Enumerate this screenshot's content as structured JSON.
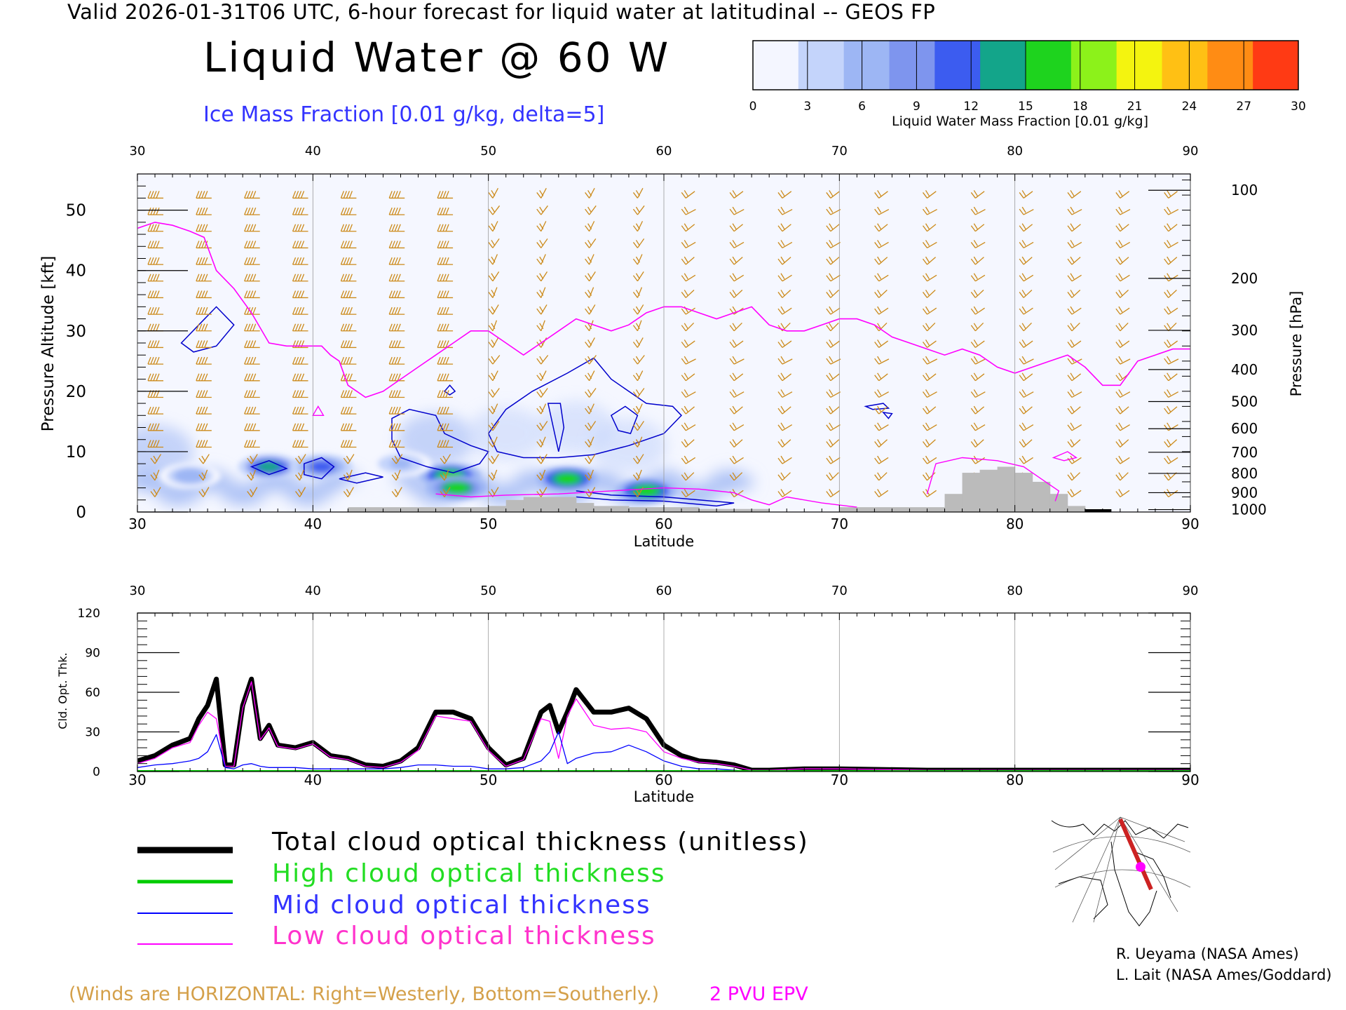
{
  "header": {
    "line": "Valid 2026-01-31T06 UTC, 6-hour forecast for liquid water at latitudinal -- GEOS FP",
    "main_title": "Liquid Water @ 60 W",
    "ice_label": "Ice Mass Fraction [0.01 g/kg, delta=5]"
  },
  "colorbar": {
    "ticks": [
      "0",
      "3",
      "6",
      "9",
      "12",
      "15",
      "18",
      "21",
      "24",
      "27",
      "30"
    ],
    "title": "Liquid Water Mass Fraction [0.01 g/kg]",
    "colors": [
      "#f4f6ff",
      "#c4d4fb",
      "#9db6f4",
      "#7e95ee",
      "#3c5cf0",
      "#13a58a",
      "#1ed31e",
      "#8cf21a",
      "#f4f40f",
      "#ffc014",
      "#ff8c14",
      "#ff3a14"
    ]
  },
  "chart_data": [
    {
      "type": "heatmap",
      "title": "Liquid Water @ 60 W",
      "xlabel": "Latitude",
      "ylabel": "Pressure Altitude [kft]",
      "y2label": "Pressure [hPa]",
      "xlim": [
        30,
        90
      ],
      "ylim": [
        0,
        56
      ],
      "x_ticks": [
        "30",
        "40",
        "50",
        "60",
        "70",
        "80",
        "90"
      ],
      "y_ticks": [
        "0",
        "10",
        "20",
        "30",
        "40",
        "50"
      ],
      "pressure_ticks": [
        "100",
        "200",
        "300",
        "400",
        "500",
        "600",
        "700",
        "800",
        "900",
        "1000"
      ],
      "pressure_tick_kft": [
        53.3,
        38.7,
        30.1,
        23.6,
        18.3,
        13.8,
        9.9,
        6.4,
        3.2,
        0.4
      ],
      "liquid_water_cores": [
        {
          "lat": 37.5,
          "kft": 7.5,
          "peak": 13
        },
        {
          "lat": 40.5,
          "kft": 7.5,
          "peak": 11
        },
        {
          "lat": 47.8,
          "kft": 6.0,
          "peak": 16
        },
        {
          "lat": 48.2,
          "kft": 4.0,
          "peak": 15
        },
        {
          "lat": 54.5,
          "kft": 5.5,
          "peak": 17
        },
        {
          "lat": 59.0,
          "kft": 3.5,
          "peak": 16
        },
        {
          "lat": 33.0,
          "kft": 6.0,
          "peak": 6
        },
        {
          "lat": 45.0,
          "kft": 8.0,
          "peak": 5
        }
      ],
      "epv_2pvu": {
        "lat": [
          30,
          31,
          32,
          33,
          33.8,
          34.5,
          35.5,
          36.5,
          37.5,
          38.5,
          39.5,
          40.5,
          41,
          41.5,
          42,
          43,
          44,
          45,
          46,
          47,
          48,
          49,
          50,
          51,
          52,
          53,
          54,
          55,
          56,
          57,
          58,
          59,
          60,
          61,
          62,
          63,
          64,
          65,
          66,
          67,
          68,
          69,
          70,
          71,
          72,
          73,
          74,
          75,
          76,
          77,
          78,
          79,
          80,
          81,
          82,
          83,
          84,
          85,
          86,
          87,
          88,
          89,
          90
        ],
        "kft": [
          47,
          48,
          47.5,
          46.5,
          45.5,
          40,
          37,
          33,
          28,
          27.5,
          27.5,
          27.5,
          26,
          25,
          21,
          19,
          20,
          22,
          24,
          26,
          28,
          30,
          30,
          28,
          26,
          28,
          30,
          32,
          31,
          30,
          31,
          33,
          34,
          34,
          33,
          32,
          33,
          34,
          31,
          30,
          30,
          31,
          32,
          32,
          31,
          29,
          28,
          27,
          26,
          27,
          26,
          24,
          23,
          24,
          25,
          26,
          24,
          21,
          21,
          25,
          26,
          27,
          27
        ]
      },
      "terrain": {
        "lat": [
          42,
          43,
          44,
          45,
          46,
          47,
          48,
          49,
          50,
          51,
          52,
          53,
          54,
          55,
          56,
          57,
          58,
          59,
          60,
          61,
          62,
          63,
          64,
          65,
          66,
          67,
          68,
          69,
          70,
          71,
          72,
          73,
          74,
          75,
          76,
          77,
          78,
          79,
          80,
          81,
          82,
          83,
          84,
          85,
          86,
          87,
          88,
          89,
          90
        ],
        "kft": [
          0.8,
          0.8,
          0.8,
          0.8,
          0.8,
          0.8,
          0.8,
          0.8,
          1,
          2,
          2.5,
          2.5,
          2.5,
          1.5,
          1,
          1,
          0.8,
          0.8,
          0.8,
          0.8,
          0.5,
          0.5,
          0.5,
          0.5,
          0,
          0,
          0,
          0,
          0.8,
          0.8,
          0.8,
          0.8,
          0.8,
          0.8,
          3,
          6.5,
          7,
          7.5,
          6.5,
          5,
          3,
          1,
          0,
          0,
          0,
          0,
          0,
          0,
          0
        ]
      }
    },
    {
      "type": "line",
      "xlabel": "Latitude",
      "ylabel": "Cld. Opt. Thk.",
      "xlim": [
        30,
        90
      ],
      "ylim": [
        0,
        120
      ],
      "x_ticks": [
        "30",
        "40",
        "50",
        "60",
        "70",
        "80",
        "90"
      ],
      "y_ticks": [
        "0",
        "30",
        "60",
        "90",
        "120"
      ],
      "x": [
        30,
        31,
        32,
        33,
        33.5,
        34,
        34.5,
        35,
        35.5,
        36,
        36.5,
        37,
        37.5,
        38,
        39,
        40,
        41,
        42,
        43,
        44,
        45,
        46,
        47,
        48,
        49,
        50,
        51,
        52,
        53,
        53.5,
        54,
        54.5,
        55,
        56,
        57,
        58,
        59,
        60,
        61,
        62,
        63,
        64,
        65,
        66,
        68,
        70,
        75,
        80,
        85,
        90
      ],
      "series": [
        {
          "name": "Total cloud optical thickness (unitless)",
          "color": "#000000",
          "values": [
            8,
            12,
            20,
            25,
            40,
            50,
            70,
            5,
            5,
            50,
            70,
            25,
            35,
            20,
            18,
            22,
            12,
            10,
            5,
            4,
            8,
            18,
            45,
            45,
            40,
            18,
            5,
            10,
            45,
            50,
            30,
            45,
            62,
            45,
            45,
            48,
            40,
            20,
            12,
            8,
            7,
            5,
            1,
            1,
            2,
            2,
            1,
            1,
            1,
            1
          ]
        },
        {
          "name": "High cloud optical thickness",
          "color": "#00cc00",
          "values": [
            0,
            0,
            0,
            0,
            0,
            0,
            0,
            0,
            0,
            0,
            0,
            0,
            0,
            0,
            0,
            0,
            0,
            0,
            0,
            0,
            0,
            0,
            0,
            0,
            0,
            0,
            0,
            0,
            0,
            0,
            0,
            0,
            0,
            0,
            0,
            0,
            0,
            0,
            0,
            0,
            0,
            0,
            0,
            0,
            0,
            0,
            0,
            0,
            0,
            0
          ]
        },
        {
          "name": "Mid cloud optical thickness",
          "color": "#0000ff",
          "values": [
            3,
            5,
            6,
            8,
            10,
            15,
            28,
            3,
            2,
            5,
            6,
            4,
            3,
            3,
            3,
            2,
            2,
            2,
            2,
            2,
            3,
            5,
            5,
            4,
            4,
            2,
            2,
            3,
            8,
            15,
            30,
            6,
            10,
            14,
            15,
            20,
            15,
            8,
            4,
            2,
            2,
            1,
            0,
            0,
            0,
            0,
            0,
            0,
            0,
            0
          ]
        },
        {
          "name": "Low cloud optical thickness",
          "color": "#ff00ff",
          "values": [
            6,
            10,
            18,
            22,
            35,
            45,
            40,
            4,
            4,
            48,
            68,
            24,
            33,
            19,
            17,
            21,
            11,
            9,
            4,
            3,
            7,
            16,
            42,
            40,
            38,
            16,
            4,
            9,
            40,
            38,
            10,
            42,
            55,
            35,
            32,
            33,
            30,
            15,
            10,
            7,
            6,
            4,
            1,
            1,
            2,
            2,
            1,
            1,
            1,
            1
          ]
        }
      ]
    }
  ],
  "legend": {
    "total": "Total cloud optical thickness (unitless)",
    "high": "High cloud optical thickness",
    "mid": "Mid cloud optical thickness",
    "low": "Low cloud optical thickness"
  },
  "credits": {
    "line1": "R. Ueyama (NASA Ames)",
    "line2": "L. Lait (NASA Ames/Goddard)"
  },
  "notes": {
    "winds": "(Winds are HORIZONTAL: Right=Westerly, Bottom=Southerly.)",
    "pvu": "2 PVU EPV"
  },
  "colors": {
    "wind_barb": "#cc8a1a",
    "epv": "#ff00ff",
    "ice_contour": "#0000cc",
    "terrain": "#bbbbbb"
  }
}
